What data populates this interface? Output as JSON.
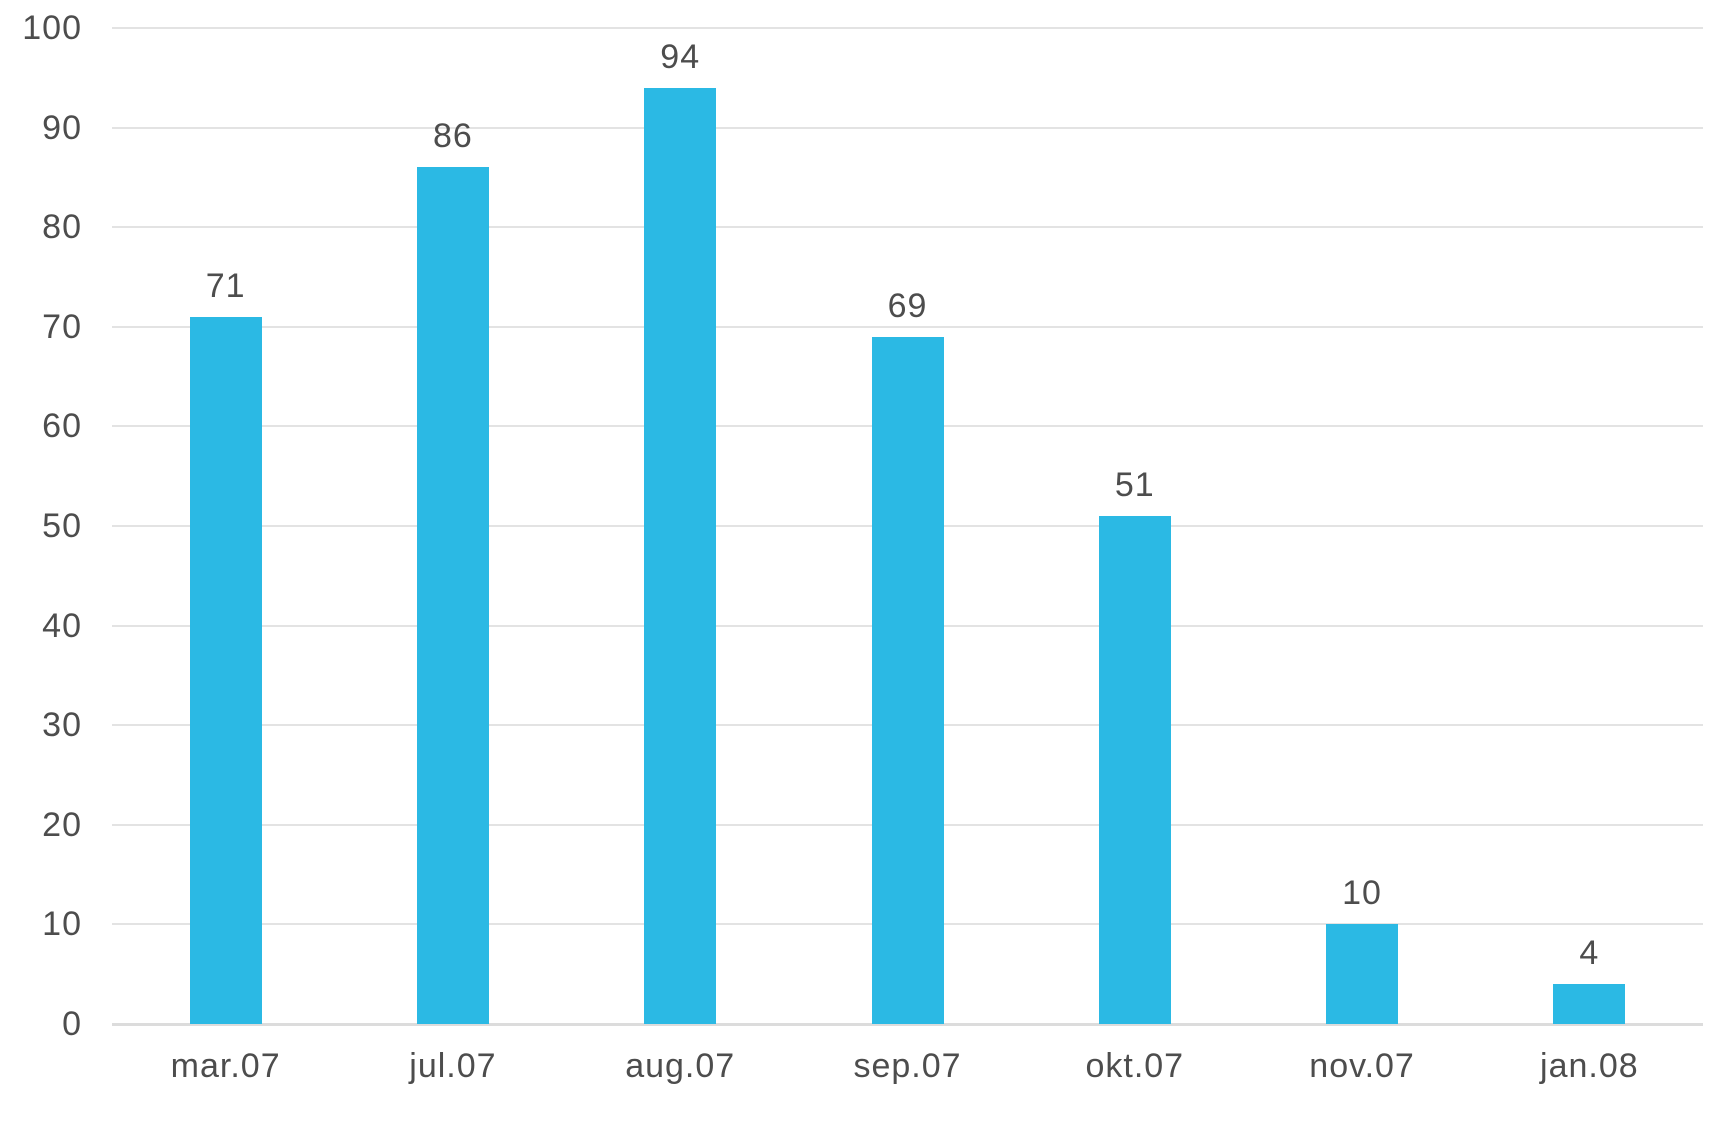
{
  "chart_data": {
    "type": "bar",
    "categories": [
      "mar.07",
      "jul.07",
      "aug.07",
      "sep.07",
      "okt.07",
      "nov.07",
      "jan.08"
    ],
    "values": [
      71,
      86,
      94,
      69,
      51,
      10,
      4
    ],
    "title": "",
    "xlabel": "",
    "ylabel": "",
    "ylim": [
      0,
      100
    ],
    "yticks": [
      0,
      10,
      20,
      30,
      40,
      50,
      60,
      70,
      80,
      90,
      100
    ],
    "grid": true,
    "legend": false,
    "data_labels": true,
    "colors": {
      "bar": "#2BB9E4",
      "text": "#4D4D4D",
      "gridline": "#E3E3E3",
      "baseline": "#DCDCDC"
    }
  }
}
